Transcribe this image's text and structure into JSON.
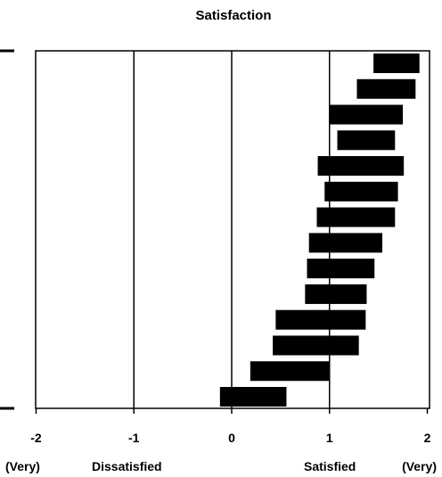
{
  "chart_data": {
    "type": "bar",
    "orientation": "horizontal-range",
    "title": "Satisfaction",
    "xlim": [
      -2,
      2
    ],
    "x_ticks": [
      -2,
      -1,
      0,
      1,
      2
    ],
    "x_tick_labels": [
      "-2",
      "-1",
      "0",
      "1",
      "2"
    ],
    "scale_labels": [
      "(Very)",
      "Dissatisfied",
      "Satisfied",
      "(Very)"
    ],
    "vertical_reference_lines": [
      -1,
      0,
      1
    ],
    "grid": false,
    "legend": "none",
    "bar_color": "#000000",
    "ranges": [
      {
        "low": 1.45,
        "high": 1.92
      },
      {
        "low": 1.28,
        "high": 1.88
      },
      {
        "low": 1.0,
        "high": 1.75
      },
      {
        "low": 1.08,
        "high": 1.67
      },
      {
        "low": 0.88,
        "high": 1.76
      },
      {
        "low": 0.95,
        "high": 1.7
      },
      {
        "low": 0.87,
        "high": 1.67
      },
      {
        "low": 0.79,
        "high": 1.54
      },
      {
        "low": 0.77,
        "high": 1.46
      },
      {
        "low": 0.75,
        "high": 1.38
      },
      {
        "low": 0.45,
        "high": 1.37
      },
      {
        "low": 0.42,
        "high": 1.3
      },
      {
        "low": 0.19,
        "high": 1.0
      },
      {
        "low": -0.12,
        "high": 0.56
      }
    ]
  }
}
